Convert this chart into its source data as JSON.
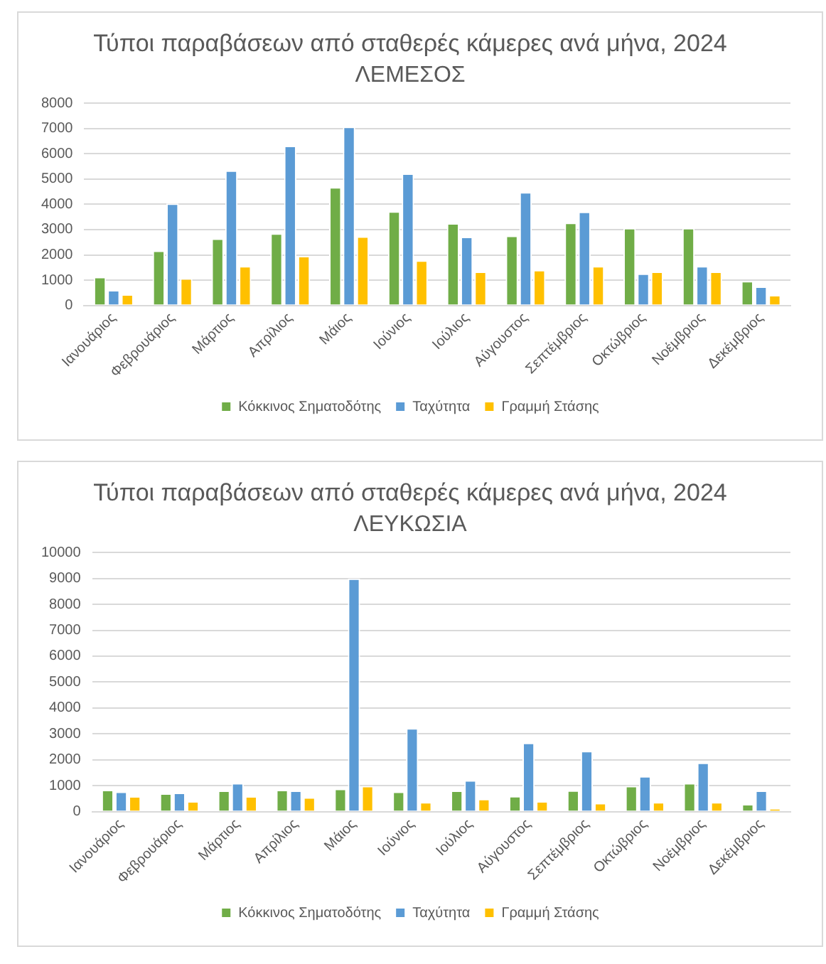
{
  "chart_data": [
    {
      "type": "bar",
      "title": "Τύποι παραβάσεων από σταθερές κάμερες ανά μήνα, 2024",
      "subtitle": "ΛΕΜΕΣΟΣ",
      "categories": [
        "Ιανουάριος",
        "Φεβρουάριος",
        "Μάρτιος",
        "Απρίλιος",
        "Μάιος",
        "Ιούνιος",
        "Ιούλιος",
        "Αύγουστος",
        "Σεπτέμβριος",
        "Οκτώβριος",
        "Νοέμβριος",
        "Δεκέμβριος"
      ],
      "series": [
        {
          "name": "Κόκκινος Σηματοδότης",
          "color": "#70ad47",
          "values": [
            1130,
            2170,
            2650,
            2850,
            4680,
            3720,
            3250,
            2760,
            3270,
            3060,
            3060,
            970
          ]
        },
        {
          "name": "Ταχύτητα",
          "color": "#5b9bd5",
          "values": [
            610,
            4030,
            5340,
            6320,
            7070,
            5220,
            2720,
            4480,
            3710,
            1260,
            1560,
            750
          ]
        },
        {
          "name": "Γραμμή Στάσης",
          "color": "#ffc000",
          "values": [
            440,
            1070,
            1560,
            1960,
            2730,
            1780,
            1340,
            1400,
            1560,
            1340,
            1340,
            410
          ]
        }
      ],
      "ylim": [
        0,
        8000
      ],
      "yticks": [
        0,
        1000,
        2000,
        3000,
        4000,
        5000,
        6000,
        7000,
        8000
      ],
      "grid": "y",
      "legend": "bottom"
    },
    {
      "type": "bar",
      "title": "Τύποι παραβάσεων από σταθερές κάμερες ανά μήνα, 2024",
      "subtitle": "ΛΕΥΚΩΣΙΑ",
      "categories": [
        "Ιανουάριος",
        "Φεβρουάριος",
        "Μάρτιος",
        "Απρίλιος",
        "Μάιος",
        "Ιούνιος",
        "Ιούλιος",
        "Αύγουστος",
        "Σεπτέμβριος",
        "Οκτώβριος",
        "Νοέμβριος",
        "Δεκέμβριος"
      ],
      "series": [
        {
          "name": "Κόκκινος Σηματοδότης",
          "color": "#70ad47",
          "values": [
            840,
            700,
            810,
            840,
            880,
            770,
            810,
            600,
            820,
            990,
            1100,
            290
          ]
        },
        {
          "name": "Ταχύτητα",
          "color": "#5b9bd5",
          "values": [
            770,
            730,
            1100,
            810,
            9000,
            3220,
            1210,
            2660,
            2340,
            1370,
            1890,
            810
          ]
        },
        {
          "name": "Γραμμή Στάσης",
          "color": "#ffc000",
          "values": [
            590,
            400,
            590,
            550,
            990,
            370,
            490,
            400,
            330,
            370,
            370,
            130
          ]
        }
      ],
      "ylim": [
        0,
        10000
      ],
      "yticks": [
        0,
        1000,
        2000,
        3000,
        4000,
        5000,
        6000,
        7000,
        8000,
        9000,
        10000
      ],
      "grid": "y",
      "legend": "bottom"
    }
  ]
}
